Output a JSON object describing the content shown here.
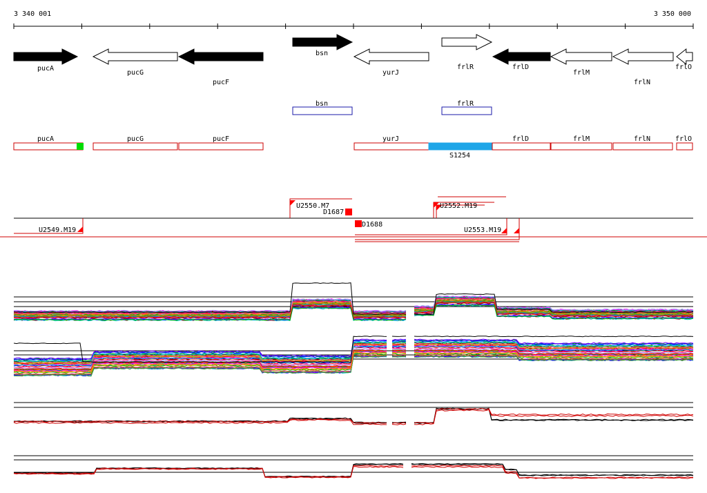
{
  "ruler": {
    "start_label": "3 340 001",
    "end_label": "3 350 000"
  },
  "genes_track": [
    {
      "name": "pucA",
      "strand": "forward",
      "fill": "#000000"
    },
    {
      "name": "pucG",
      "strand": "reverse",
      "fill": "#ffffff"
    },
    {
      "name": "pucF",
      "strand": "reverse",
      "fill": "#000000"
    },
    {
      "name": "bsn",
      "strand": "forward",
      "fill": "#000000"
    },
    {
      "name": "yurJ",
      "strand": "reverse",
      "fill": "#ffffff"
    },
    {
      "name": "frlR",
      "strand": "forward",
      "fill": "#ffffff"
    },
    {
      "name": "frlD",
      "strand": "reverse",
      "fill": "#000000"
    },
    {
      "name": "frlM",
      "strand": "reverse",
      "fill": "#ffffff"
    },
    {
      "name": "frlN",
      "strand": "reverse",
      "fill": "#ffffff"
    },
    {
      "name": "frlO",
      "strand": "reverse",
      "fill": "#ffffff"
    }
  ],
  "blue_boxes": [
    {
      "name": "bsn"
    },
    {
      "name": "frlR"
    }
  ],
  "operons": [
    {
      "name": "pucA"
    },
    {
      "name": "pucG"
    },
    {
      "name": "pucF"
    },
    {
      "name": "yurJ"
    },
    {
      "name": "frlD"
    },
    {
      "name": "frlM"
    },
    {
      "name": "frlN"
    },
    {
      "name": "frlO"
    }
  ],
  "segment_label": "S1254",
  "features": [
    {
      "name": "U2550.M7"
    },
    {
      "name": "D1687"
    },
    {
      "name": "D1688"
    },
    {
      "name": "U2549.M19"
    },
    {
      "name": "U2552.M19"
    },
    {
      "name": "U2553.M19"
    }
  ],
  "colors": {
    "operon_border": "#cc0000",
    "blue_box_border": "#1a1aaa",
    "segment_fill": "#1fa6e8",
    "green_marker": "#00dd00",
    "red_marker": "#ff0000",
    "reference_line": "#000000"
  }
}
